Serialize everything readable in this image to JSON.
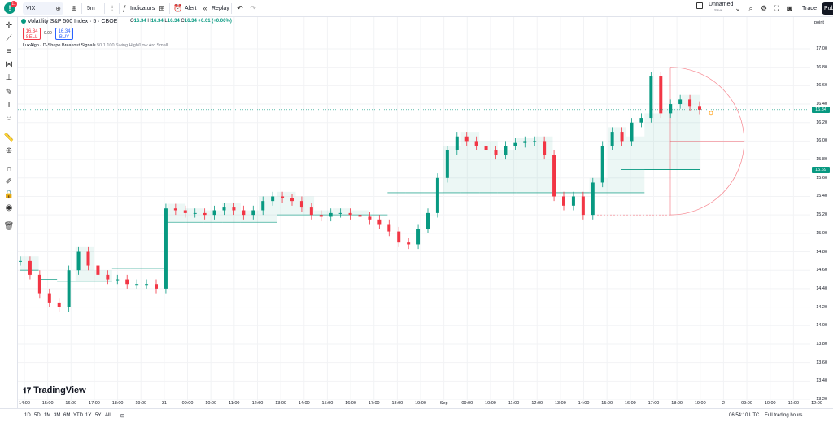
{
  "topbar": {
    "symbol": "VIX",
    "interval": "5m",
    "indicators_label": "Indicators",
    "alert_label": "Alert",
    "replay_label": "Replay",
    "layout_name": "Unnamed",
    "layout_sub": "Save",
    "trade_label": "Trade",
    "publish_label": "Pub",
    "notification_count": "11"
  },
  "legend": {
    "title": "Volatility S&P 500 Index · 5 · CBOE",
    "o": "16.34",
    "h": "16.34",
    "l": "16.34",
    "c": "16.34",
    "change": "+0.01 (+0.06%)",
    "sell_price": "16.34",
    "sell_label": "SELL",
    "buy_price": "16.34",
    "buy_label": "BUY",
    "spread": "0.00",
    "indicator_name": "LuxAlgo - D-Shape Breakout Signals",
    "indicator_params": "50 1 100 Swing High/Low Arc Small"
  },
  "price_scale": {
    "unit": "point",
    "ticks": [
      "17.00",
      "16.80",
      "16.60",
      "16.40",
      "16.20",
      "16.00",
      "15.80",
      "15.60",
      "15.40",
      "15.20",
      "15.00",
      "14.80",
      "14.60",
      "14.40",
      "14.20",
      "14.00",
      "13.80",
      "13.60",
      "13.40",
      "13.20"
    ],
    "last_price": "16.34",
    "support_price": "15.69",
    "colors": {
      "last": "#089981",
      "support": "#089981"
    }
  },
  "time_scale": {
    "ticks": [
      "14:00",
      "15:00",
      "16:00",
      "17:00",
      "18:00",
      "19:00",
      "31",
      "09:00",
      "10:00",
      "11:00",
      "12:00",
      "13:00",
      "14:00",
      "15:00",
      "16:00",
      "17:00",
      "18:00",
      "19:00",
      "Sep",
      "09:00",
      "10:00",
      "11:00",
      "12:00",
      "13:00",
      "14:00",
      "15:00",
      "16:00",
      "17:00",
      "18:00",
      "19:00",
      "2",
      "09:00",
      "10:00",
      "11:00",
      "12:00"
    ]
  },
  "bottombar": {
    "ranges": [
      "1D",
      "5D",
      "1M",
      "3M",
      "6M",
      "YTD",
      "1Y",
      "5Y",
      "All"
    ],
    "clock": "06:54:10 UTC",
    "session": "Full trading hours"
  },
  "branding": {
    "logo_text": "TradingView"
  },
  "chart_data": {
    "type": "line",
    "title": "",
    "ylabel": "point",
    "ylim": [
      13.1,
      17.2
    ],
    "series": [
      {
        "values": [
          14.7,
          14.55,
          14.35,
          14.25,
          14.2,
          14.6,
          14.8,
          14.65,
          14.55,
          14.5,
          14.5,
          14.45,
          14.45,
          14.45,
          14.4,
          15.27,
          15.25,
          15.22,
          15.22,
          15.2,
          15.25,
          15.28,
          15.25,
          15.2,
          15.25,
          15.35,
          15.4,
          15.38,
          15.35,
          15.28,
          15.2,
          15.18,
          15.22,
          15.22,
          15.2,
          15.18,
          15.15,
          15.1,
          15.02,
          14.9,
          14.88,
          15.05,
          15.22,
          15.6,
          15.9,
          16.05,
          16.0,
          15.95,
          15.9,
          15.85,
          15.95,
          15.98,
          16.0,
          16.0,
          15.85,
          15.4,
          15.3,
          15.4,
          15.2,
          15.55,
          15.95,
          16.1,
          16.0,
          16.2,
          16.25,
          16.7,
          16.3,
          16.4,
          16.45,
          16.38,
          16.34
        ]
      }
    ],
    "levels": {
      "support_steps": [
        14.6,
        14.5,
        14.48,
        14.48,
        14.48,
        14.62,
        14.62,
        14.62,
        15.12,
        15.12,
        15.12,
        15.12,
        15.12,
        15.12,
        15.2,
        15.2,
        15.2,
        15.2,
        15.2,
        15.2,
        15.44,
        15.44,
        15.44,
        15.44,
        15.44,
        15.44,
        15.44,
        15.44,
        15.44,
        15.44,
        15.44,
        15.44,
        15.44,
        15.44,
        15.69,
        15.69,
        15.69
      ],
      "arc_center": 16.0,
      "arc_top": 16.8,
      "arc_bottom": 15.2
    },
    "grid": true,
    "colors": {
      "up": "#089981",
      "down": "#f23645"
    }
  }
}
